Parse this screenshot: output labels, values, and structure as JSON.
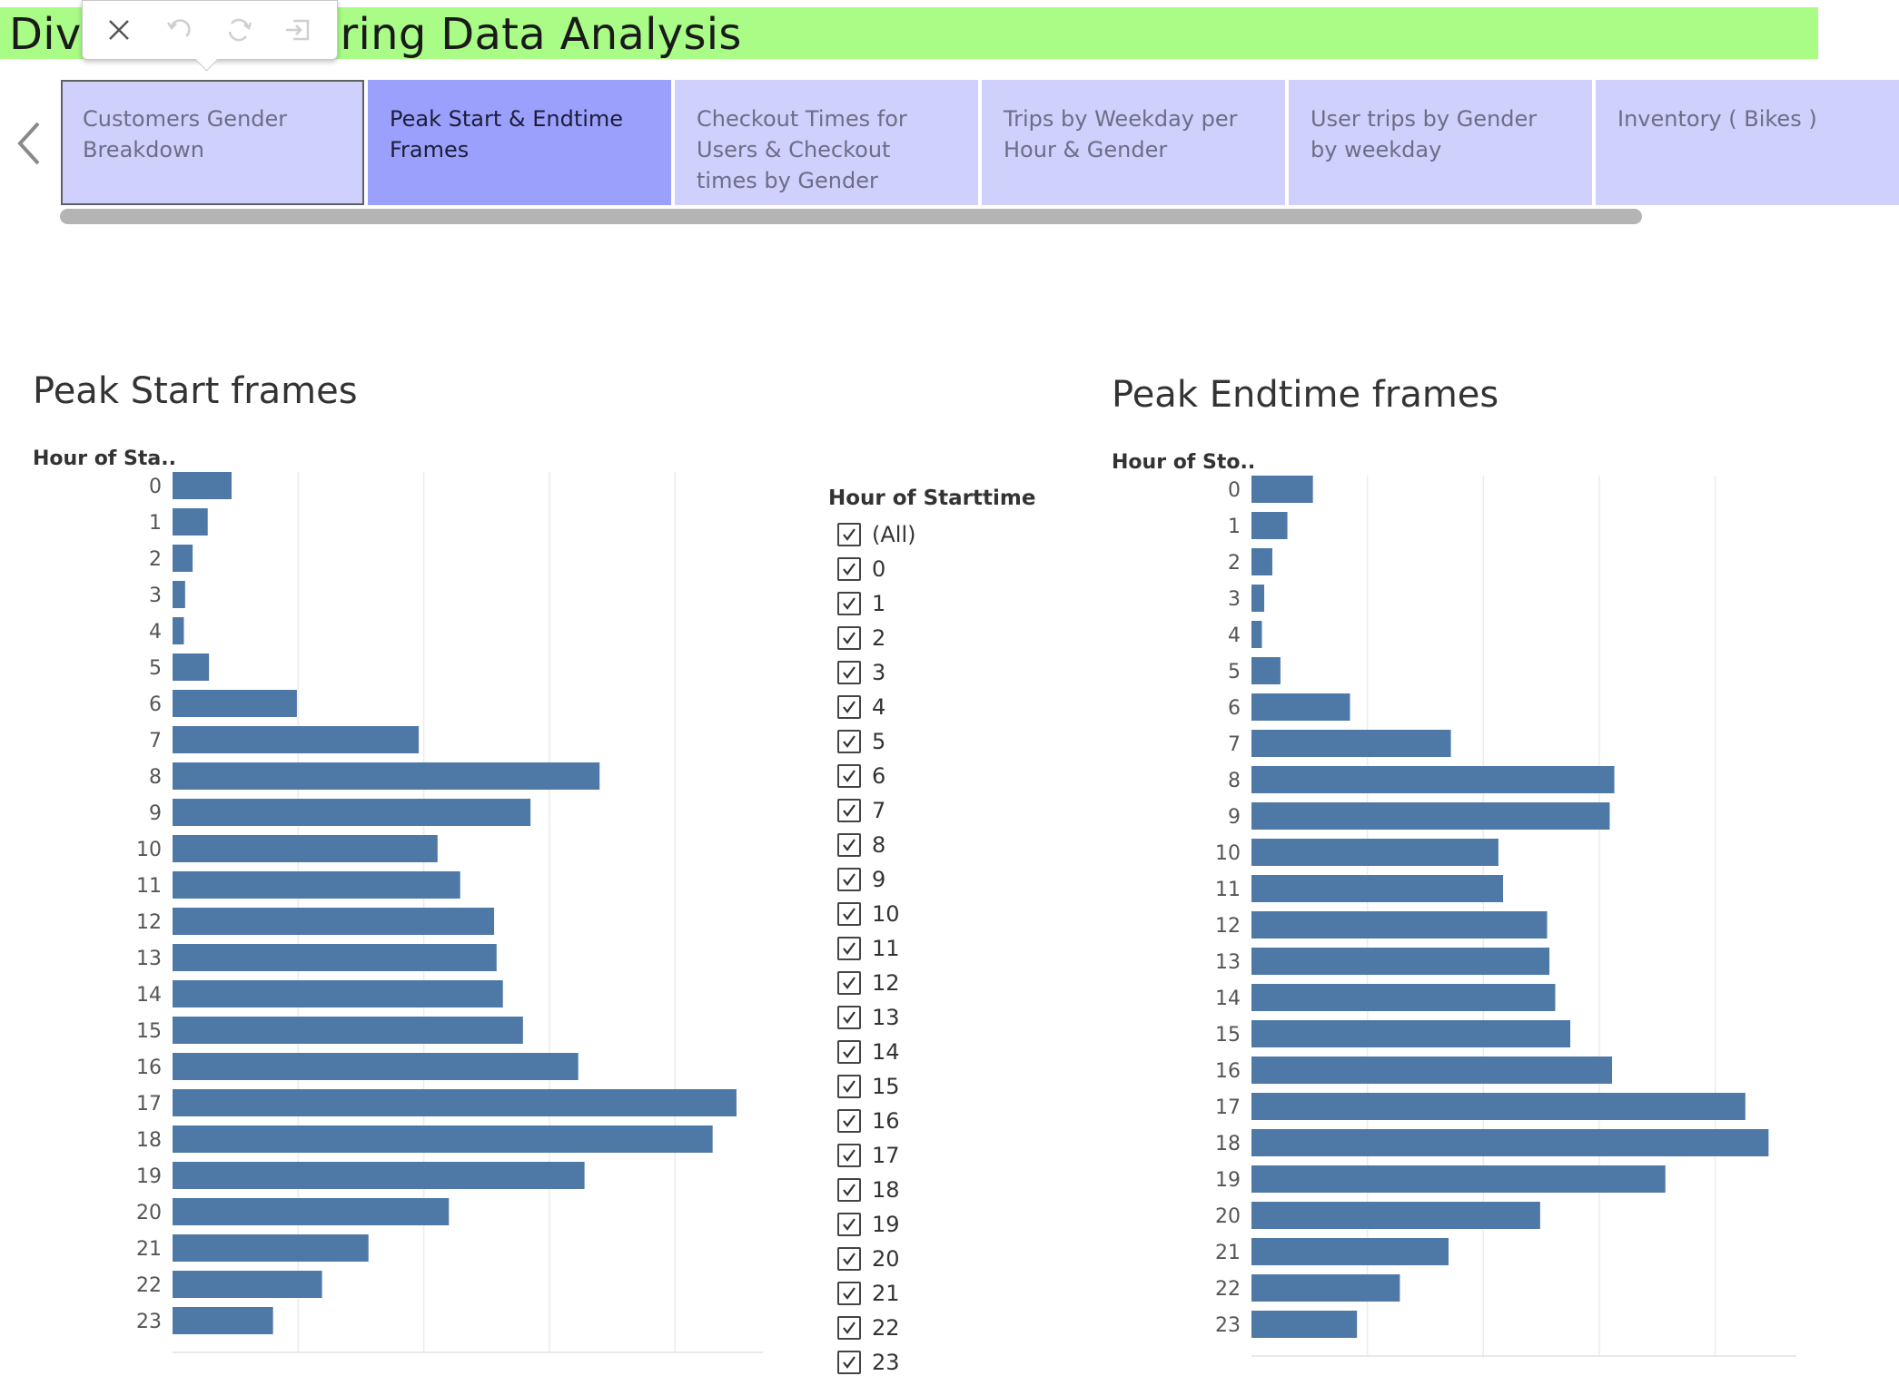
{
  "header": {
    "title": "Divvy Bike-Sharing Data Analysis",
    "background_color": "#a9fc86"
  },
  "toolbar": {
    "icons": [
      "close-icon",
      "undo-icon",
      "refresh-icon",
      "exit-icon"
    ]
  },
  "story_tabs": {
    "prev_icon": "chevron-left-icon",
    "next_icon": "chevron-right-icon",
    "tabs": [
      {
        "label": "Customers Gender Breakdown",
        "selected": true
      },
      {
        "label": "Peak Start & Endtime Frames",
        "active": true
      },
      {
        "label": "Checkout Times for Users & Checkout times by Gender"
      },
      {
        "label": "Trips by Weekday per Hour & Gender"
      },
      {
        "label": "User trips by Gender by weekday"
      },
      {
        "label": "Inventory ( Bikes )"
      }
    ],
    "colors": {
      "tab": "#cfd0fb",
      "active_tab": "#9aa0fb"
    }
  },
  "charts": {
    "start": {
      "title": "Peak Start frames",
      "axis_header": "Hour of Sta.."
    },
    "end": {
      "title": "Peak Endtime frames",
      "axis_header": "Hour of Sto.."
    }
  },
  "filter": {
    "title": "Hour of Starttime",
    "items": [
      "(All)",
      "0",
      "1",
      "2",
      "3",
      "4",
      "5",
      "6",
      "7",
      "8",
      "9",
      "10",
      "11",
      "12",
      "13",
      "14",
      "15",
      "16",
      "17",
      "18",
      "19",
      "20",
      "21",
      "22",
      "23"
    ],
    "all_checked": true
  },
  "chart_data": [
    {
      "type": "bar",
      "orientation": "horizontal",
      "title": "Peak Start frames",
      "ylabel": "Hour of Sta..",
      "xlabel": "",
      "categories": [
        "0",
        "1",
        "2",
        "3",
        "4",
        "5",
        "6",
        "7",
        "8",
        "9",
        "10",
        "11",
        "12",
        "13",
        "14",
        "15",
        "16",
        "17",
        "18",
        "19",
        "20",
        "21",
        "22",
        "23"
      ],
      "values": [
        4.7,
        2.8,
        1.6,
        1.0,
        0.9,
        2.9,
        9.9,
        19.6,
        34.0,
        28.5,
        21.1,
        22.9,
        25.6,
        25.8,
        26.3,
        27.9,
        32.3,
        44.9,
        43.0,
        32.8,
        22.0,
        15.6,
        11.9,
        8.0
      ],
      "xlim": [
        0,
        47
      ],
      "color": "#4e79a7",
      "grid": "vertical"
    },
    {
      "type": "bar",
      "orientation": "horizontal",
      "title": "Peak Endtime frames",
      "ylabel": "Hour of Sto..",
      "xlabel": "",
      "categories": [
        "0",
        "1",
        "2",
        "3",
        "4",
        "5",
        "6",
        "7",
        "8",
        "9",
        "10",
        "11",
        "12",
        "13",
        "14",
        "15",
        "16",
        "17",
        "18",
        "19",
        "20",
        "21",
        "22",
        "23"
      ],
      "values": [
        5.3,
        3.1,
        1.8,
        1.1,
        0.9,
        2.5,
        8.5,
        17.2,
        31.3,
        30.9,
        21.3,
        21.7,
        25.5,
        25.7,
        26.2,
        27.5,
        31.1,
        42.6,
        44.6,
        35.7,
        24.9,
        17.0,
        12.8,
        9.1
      ],
      "xlim": [
        0,
        47
      ],
      "color": "#4e79a7",
      "grid": "vertical"
    }
  ]
}
